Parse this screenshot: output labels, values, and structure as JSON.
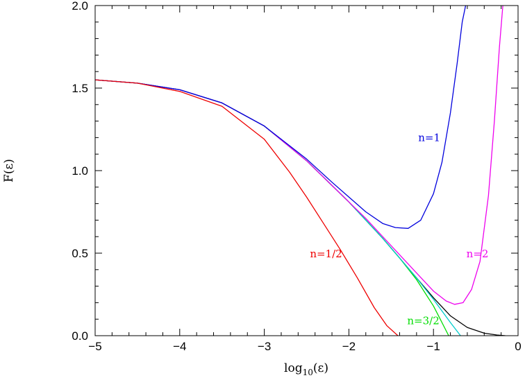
{
  "chart_data": {
    "type": "line",
    "title": "",
    "xlabel": "log",
    "xlabel_sub": "10",
    "xlabel_tail": "(ε)",
    "ylabel": "F(ε)",
    "xlim": [
      -5,
      0
    ],
    "ylim": [
      0,
      2.0
    ],
    "grid": false,
    "legend": "none",
    "x_ticks": [
      {
        "value": -5,
        "label": "−5"
      },
      {
        "value": -4,
        "label": "−4"
      },
      {
        "value": -3,
        "label": "−3"
      },
      {
        "value": -2,
        "label": "−2"
      },
      {
        "value": -1,
        "label": "−1"
      },
      {
        "value": 0,
        "label": "0"
      }
    ],
    "y_ticks": [
      {
        "value": 0.0,
        "label": "0.0"
      },
      {
        "value": 0.5,
        "label": "0.5"
      },
      {
        "value": 1.0,
        "label": "1.0"
      },
      {
        "value": 1.5,
        "label": "1.5"
      },
      {
        "value": 2.0,
        "label": "2.0"
      }
    ],
    "series": [
      {
        "name": "",
        "color": "#000000",
        "x": [
          -5.0,
          -4.5,
          -4.0,
          -3.5,
          -3.0,
          -2.5,
          -2.2,
          -2.0,
          -1.8,
          -1.6,
          -1.4,
          -1.2,
          -1.0,
          -0.8,
          -0.6,
          -0.4,
          -0.25,
          -0.15
        ],
        "y": [
          1.55,
          1.53,
          1.49,
          1.41,
          1.27,
          1.06,
          0.91,
          0.81,
          0.7,
          0.59,
          0.47,
          0.35,
          0.23,
          0.12,
          0.05,
          0.015,
          0.004,
          0.0
        ]
      },
      {
        "name": "n=3/2",
        "color": "#00dd00",
        "x": [
          -5.0,
          -4.5,
          -4.0,
          -3.5,
          -3.0,
          -2.5,
          -2.2,
          -2.0,
          -1.8,
          -1.6,
          -1.4,
          -1.2,
          -1.0,
          -0.9,
          -0.82
        ],
        "y": [
          1.55,
          1.53,
          1.49,
          1.41,
          1.27,
          1.06,
          0.91,
          0.81,
          0.7,
          0.59,
          0.47,
          0.34,
          0.18,
          0.08,
          0.0
        ]
      },
      {
        "name": "",
        "color": "#00cccc",
        "x": [
          -5.0,
          -4.5,
          -4.0,
          -3.5,
          -3.0,
          -2.5,
          -2.2,
          -2.0,
          -1.8,
          -1.6,
          -1.4,
          -1.2,
          -1.0,
          -0.8,
          -0.68
        ],
        "y": [
          1.55,
          1.53,
          1.49,
          1.41,
          1.27,
          1.06,
          0.91,
          0.81,
          0.7,
          0.59,
          0.47,
          0.35,
          0.22,
          0.08,
          0.0
        ]
      },
      {
        "name": "n=2",
        "color": "#ee00ee",
        "x": [
          -5.0,
          -4.5,
          -4.0,
          -3.5,
          -3.0,
          -2.5,
          -2.2,
          -2.0,
          -1.8,
          -1.6,
          -1.4,
          -1.2,
          -1.0,
          -0.85,
          -0.75,
          -0.65,
          -0.55,
          -0.45,
          -0.35,
          -0.28,
          -0.22,
          -0.18
        ],
        "y": [
          1.55,
          1.53,
          1.49,
          1.41,
          1.27,
          1.06,
          0.91,
          0.81,
          0.71,
          0.6,
          0.49,
          0.38,
          0.27,
          0.21,
          0.19,
          0.2,
          0.28,
          0.45,
          0.85,
          1.3,
          1.75,
          2.0
        ]
      },
      {
        "name": "n=1",
        "color": "#0000dd",
        "x": [
          -5.0,
          -4.5,
          -4.0,
          -3.5,
          -3.0,
          -2.5,
          -2.2,
          -2.0,
          -1.8,
          -1.6,
          -1.45,
          -1.3,
          -1.15,
          -1.0,
          -0.9,
          -0.8,
          -0.72,
          -0.66,
          -0.62
        ],
        "y": [
          1.55,
          1.53,
          1.49,
          1.41,
          1.27,
          1.07,
          0.93,
          0.84,
          0.75,
          0.68,
          0.655,
          0.65,
          0.7,
          0.86,
          1.05,
          1.35,
          1.65,
          1.9,
          2.0
        ]
      },
      {
        "name": "n=1/2",
        "color": "#ee0000",
        "x": [
          -5.0,
          -4.5,
          -4.0,
          -3.5,
          -3.0,
          -2.7,
          -2.5,
          -2.3,
          -2.1,
          -1.9,
          -1.7,
          -1.55,
          -1.42
        ],
        "y": [
          1.55,
          1.53,
          1.48,
          1.39,
          1.19,
          0.99,
          0.84,
          0.68,
          0.52,
          0.35,
          0.17,
          0.06,
          0.0
        ]
      }
    ],
    "annotations": [
      {
        "text": "n=1",
        "x": -1.05,
        "y": 1.2,
        "color": "#0000dd"
      },
      {
        "text": "n=1/2",
        "x": -2.27,
        "y": 0.495,
        "color": "#ee0000"
      },
      {
        "text": "n=2",
        "x": -0.48,
        "y": 0.495,
        "color": "#ee00ee"
      },
      {
        "text": "n=3/2",
        "x": -1.12,
        "y": 0.09,
        "color": "#00dd00"
      }
    ]
  }
}
